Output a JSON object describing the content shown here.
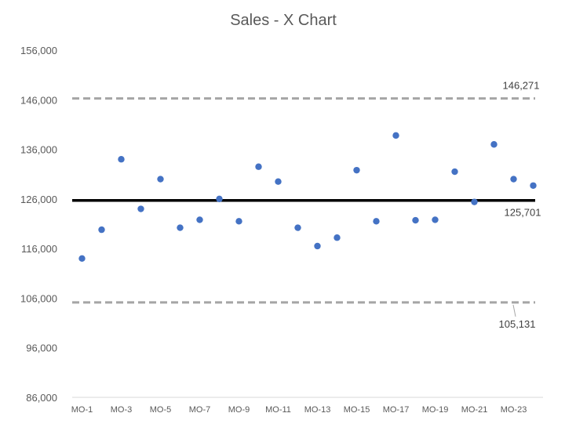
{
  "chart_data": {
    "type": "scatter",
    "title": "Sales - X Chart",
    "xlabel": "",
    "ylabel": "",
    "ylim": [
      86000,
      156000
    ],
    "y_ticks": [
      "86,000",
      "96,000",
      "106,000",
      "116,000",
      "126,000",
      "136,000",
      "146,000",
      "156,000"
    ],
    "y_tick_values": [
      86000,
      96000,
      106000,
      116000,
      126000,
      136000,
      146000,
      156000
    ],
    "grid": false,
    "categories": [
      "MO-1",
      "MO-2",
      "MO-3",
      "MO-4",
      "MO-5",
      "MO-6",
      "MO-7",
      "MO-8",
      "MO-9",
      "MO-10",
      "MO-11",
      "MO-12",
      "MO-13",
      "MO-14",
      "MO-15",
      "MO-16",
      "MO-17",
      "MO-18",
      "MO-19",
      "MO-20",
      "MO-21",
      "MO-22",
      "MO-23",
      "MO-24"
    ],
    "x_tick_labels": [
      "MO-1",
      "MO-3",
      "MO-5",
      "MO-7",
      "MO-9",
      "MO-11",
      "MO-13",
      "MO-15",
      "MO-17",
      "MO-19",
      "MO-21",
      "MO-23"
    ],
    "values": [
      114000,
      119800,
      134000,
      124000,
      130000,
      120200,
      121800,
      126000,
      121500,
      132500,
      129500,
      120200,
      116500,
      118200,
      131800,
      121500,
      138800,
      121700,
      121800,
      131500,
      125400,
      137000,
      130000,
      128700
    ],
    "center_line": {
      "value": 125701,
      "label": "125,701"
    },
    "upper_limit": {
      "value": 146271,
      "label": "146,271"
    },
    "lower_limit": {
      "value": 105131,
      "label": "105,131"
    },
    "colors": {
      "points": "#4472c4",
      "center": "#000000",
      "limits": "#a5a5a5",
      "text": "#595959"
    }
  }
}
